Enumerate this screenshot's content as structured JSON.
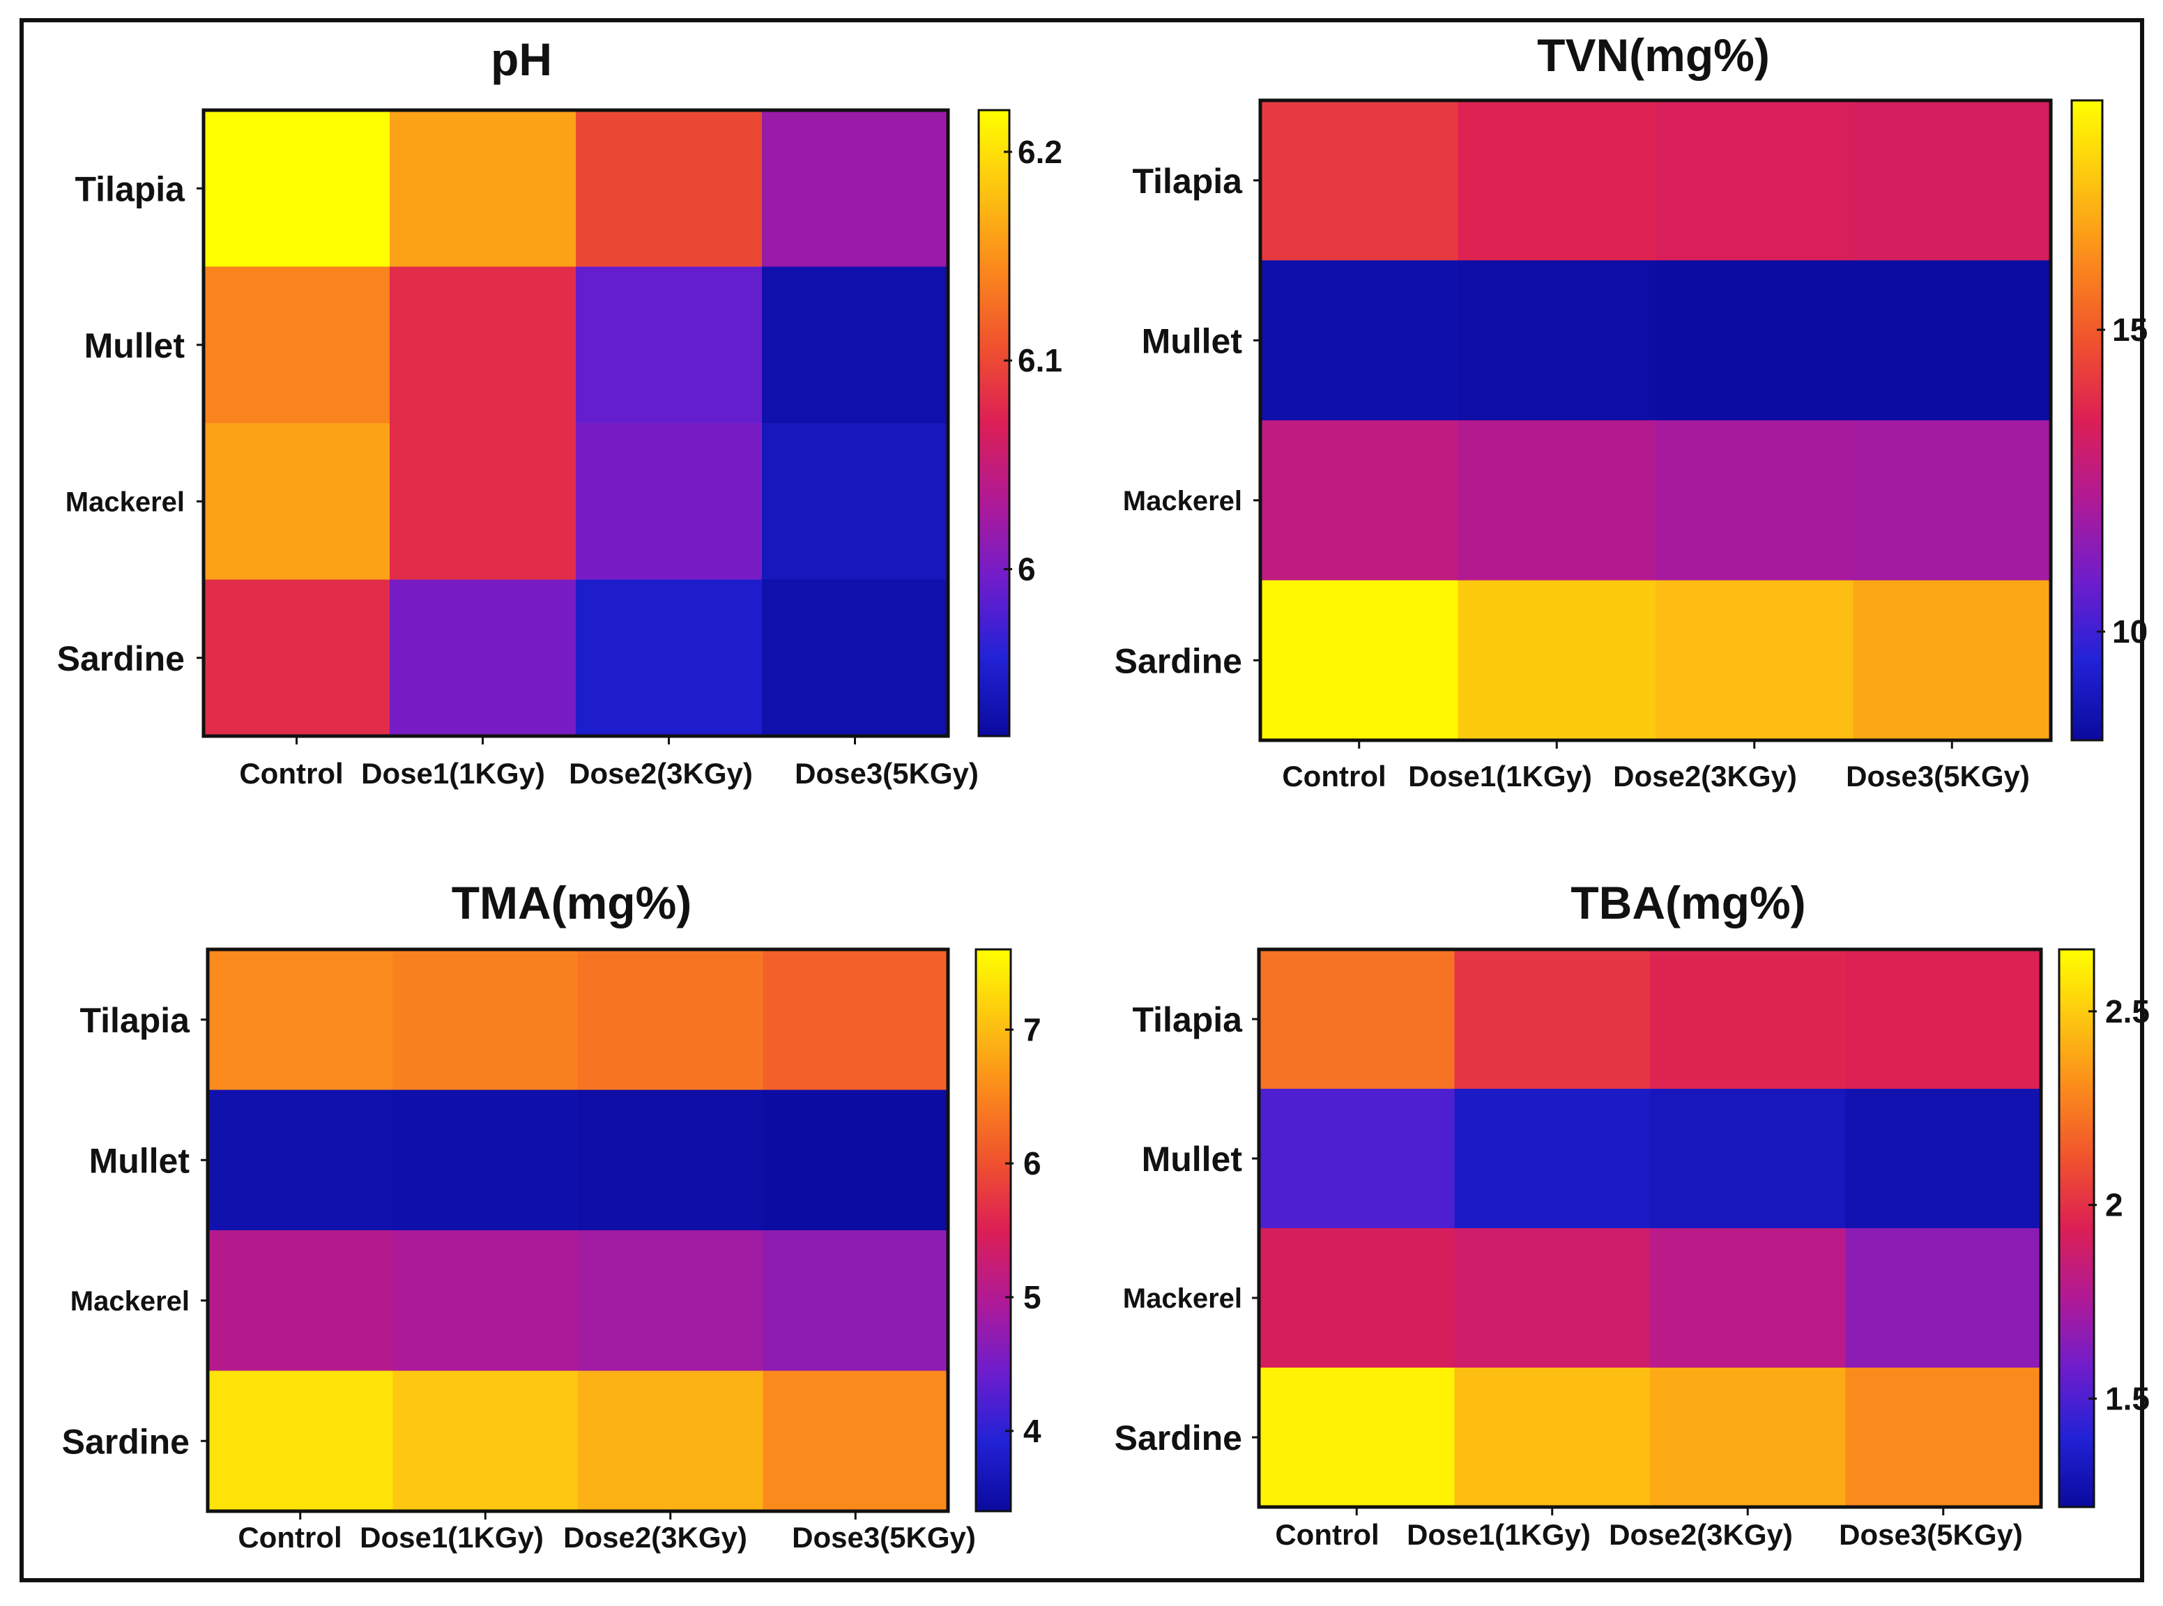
{
  "figure": {
    "frame": "heatmap-panel-grid"
  },
  "colormap": {
    "name": "plasma-like",
    "stops": [
      "#0a0a9e",
      "#2222d6",
      "#6f1dcc",
      "#b01a96",
      "#dc1f55",
      "#f0532d",
      "#fb8a1c",
      "#fdc510",
      "#ffff00"
    ]
  },
  "chart_data": [
    {
      "type": "heatmap",
      "title": "pH",
      "rows": [
        "Tilapia",
        "Mullet",
        "Mackerel",
        "Sardine"
      ],
      "columns": [
        "Control",
        "Dose1(1KGy)",
        "Dose2(3KGy)",
        "Dose3(5KGy)"
      ],
      "values": [
        [
          6.22,
          6.16,
          6.1,
          6.02
        ],
        [
          6.14,
          6.08,
          5.99,
          5.93
        ],
        [
          6.16,
          6.08,
          6.0,
          5.94
        ],
        [
          6.08,
          6.0,
          5.95,
          5.93
        ]
      ],
      "colorbar": {
        "range": [
          5.92,
          6.22
        ],
        "ticks": [
          6.0,
          6.1,
          6.2
        ],
        "tick_labels": [
          "6",
          "6.1",
          "6.2"
        ]
      },
      "xlabel": "",
      "ylabel": ""
    },
    {
      "type": "heatmap",
      "title": "TVN(mg%)",
      "rows": [
        "Tilapia",
        "Mullet",
        "Mackerel",
        "Sardine"
      ],
      "columns": [
        "Control",
        "Dose1(1KGy)",
        "Dose2(3KGy)",
        "Dose3(5KGy)"
      ],
      "values": [
        [
          14.2,
          13.6,
          13.4,
          13.3
        ],
        [
          8.5,
          8.4,
          8.3,
          8.3
        ],
        [
          12.6,
          12.3,
          12.0,
          11.9
        ],
        [
          18.6,
          17.6,
          17.3,
          16.8
        ]
      ],
      "colorbar": {
        "range": [
          8.2,
          18.8
        ],
        "ticks": [
          10,
          15
        ],
        "tick_labels": [
          "10",
          "15"
        ]
      },
      "xlabel": "",
      "ylabel": ""
    },
    {
      "type": "heatmap",
      "title": "TMA(mg%)",
      "rows": [
        "Tilapia",
        "Mullet",
        "Mackerel",
        "Sardine"
      ],
      "columns": [
        "Control",
        "Dose1(1KGy)",
        "Dose2(3KGy)",
        "Dose3(5KGy)"
      ],
      "values": [
        [
          6.55,
          6.45,
          6.35,
          6.15
        ],
        [
          3.55,
          3.52,
          3.48,
          3.45
        ],
        [
          5.05,
          4.95,
          4.85,
          4.7
        ],
        [
          7.35,
          7.1,
          6.9,
          6.55
        ]
      ],
      "colorbar": {
        "range": [
          3.4,
          7.6
        ],
        "ticks": [
          4,
          5,
          6,
          7
        ],
        "tick_labels": [
          "4",
          "5",
          "6",
          "7"
        ]
      },
      "xlabel": "",
      "ylabel": ""
    },
    {
      "type": "heatmap",
      "title": "TBA(mg%)",
      "rows": [
        "Tilapia",
        "Mullet",
        "Mackerel",
        "Sardine"
      ],
      "columns": [
        "Control",
        "Dose1(1KGy)",
        "Dose2(3KGy)",
        "Dose3(5KGy)"
      ],
      "values": [
        [
          2.22,
          2.02,
          1.96,
          1.95
        ],
        [
          1.5,
          1.35,
          1.32,
          1.28
        ],
        [
          1.92,
          1.88,
          1.8,
          1.66
        ],
        [
          2.62,
          2.46,
          2.4,
          2.3
        ]
      ],
      "colorbar": {
        "range": [
          1.22,
          2.66
        ],
        "ticks": [
          1.5,
          2.0,
          2.5
        ],
        "tick_labels": [
          "1.5",
          "2",
          "2.5"
        ]
      },
      "xlabel": "",
      "ylabel": ""
    }
  ]
}
